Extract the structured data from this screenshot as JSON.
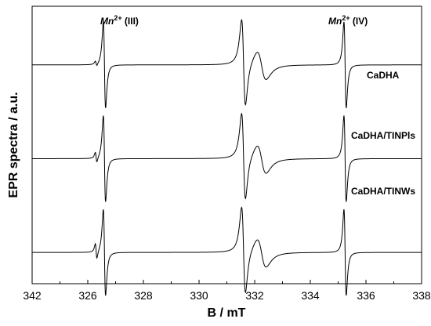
{
  "chart_data": {
    "type": "line",
    "title": "",
    "xlabel": "B / mT",
    "ylabel": "EPR spectra / a.u.",
    "xlim": [
      342,
      338
    ],
    "x_ticks": [
      342,
      326,
      328,
      330,
      332,
      334,
      336,
      338
    ],
    "grid": false,
    "series": [
      {
        "name": "CaDHA",
        "offset": 2.8
      },
      {
        "name": "CaDHA/TINPls",
        "offset": 1.6
      },
      {
        "name": "CaDHA/TINWs",
        "offset": 0.4
      }
    ],
    "annotations": [
      {
        "text_main": "Mn",
        "text_sup": "2+",
        "text_tail": " (III)",
        "x": 326.55
      },
      {
        "text_main": "Mn",
        "text_sup": "2+",
        "text_tail": " (IV)",
        "x": 335.25
      }
    ],
    "features": [
      {
        "center": 326.6,
        "kind": "sharp"
      },
      {
        "center": 331.6,
        "kind": "sharp"
      },
      {
        "center": 332.2,
        "kind": "broad"
      },
      {
        "center": 335.25,
        "kind": "sharp"
      }
    ]
  }
}
